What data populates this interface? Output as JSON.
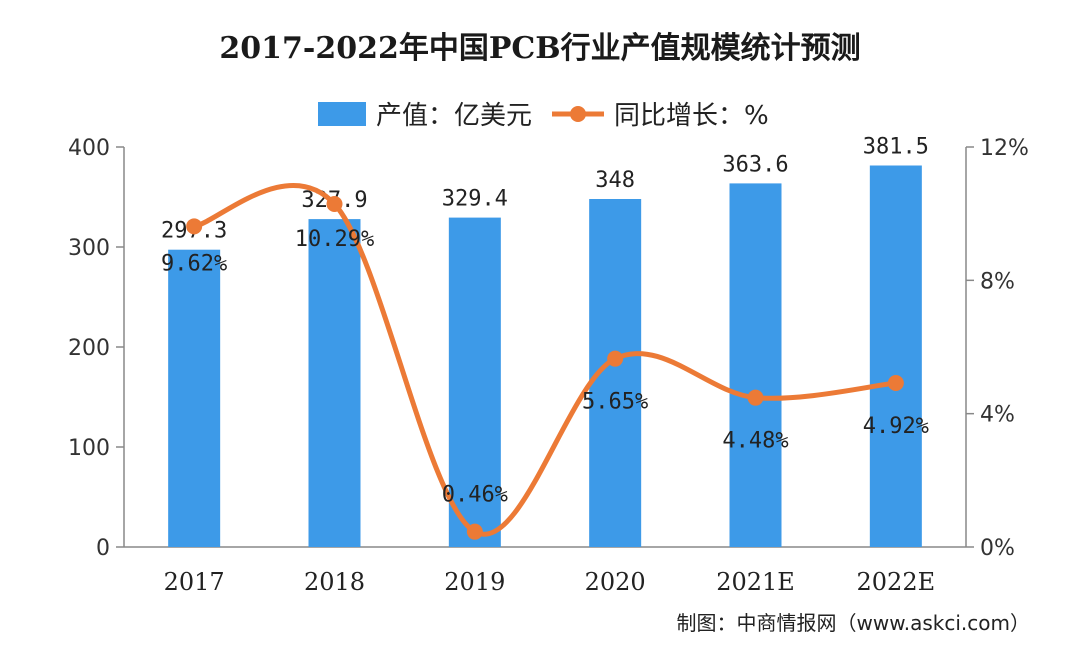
{
  "chart_data": {
    "type": "bar",
    "title": "2017-2022年中国PCB行业产值规模统计预测",
    "categories": [
      "2017",
      "2018",
      "2019",
      "2020",
      "2021E",
      "2022E"
    ],
    "series": [
      {
        "name": "产值：亿美元",
        "type": "bar",
        "axis": "left",
        "values": [
          297.3,
          327.9,
          329.4,
          348,
          363.6,
          381.5
        ],
        "labels": [
          "297.3",
          "327.9",
          "329.4",
          "348",
          "363.6",
          "381.5"
        ]
      },
      {
        "name": "同比增长：%",
        "type": "line",
        "axis": "right",
        "values": [
          9.62,
          10.29,
          0.46,
          5.65,
          4.48,
          4.92
        ],
        "labels": [
          "9.62%",
          "10.29%",
          "0.46%",
          "5.65%",
          "4.48%",
          "4.92%"
        ]
      }
    ],
    "y_left": {
      "range": [
        0,
        400
      ],
      "ticks": [
        0,
        100,
        200,
        300,
        400
      ],
      "tick_labels": [
        "0",
        "100",
        "200",
        "300",
        "400"
      ]
    },
    "y_right": {
      "range": [
        0,
        12
      ],
      "ticks": [
        0,
        4,
        8,
        12
      ],
      "tick_labels": [
        "0%",
        "4%",
        "8%",
        "12%"
      ]
    },
    "grid": false,
    "legend_position": "top-center",
    "colors": {
      "bar": "#3d9ae8",
      "line": "#ec7a36"
    }
  },
  "source": "制图：中商情报网（www.askci.com）"
}
